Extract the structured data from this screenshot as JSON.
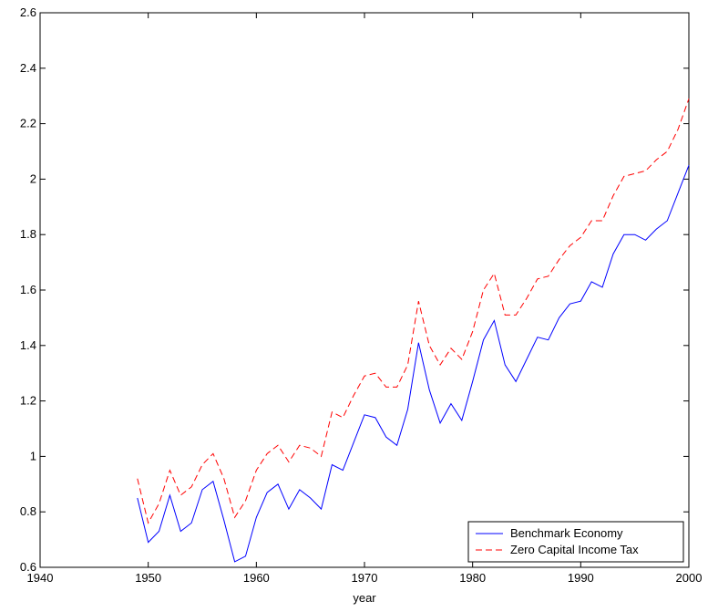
{
  "chart_data": {
    "type": "line",
    "title": "",
    "xlabel": "year",
    "ylabel": "",
    "xlim": [
      1940,
      2000
    ],
    "ylim": [
      0.6,
      2.6
    ],
    "xticks": [
      1940,
      1950,
      1960,
      1970,
      1980,
      1990,
      2000
    ],
    "yticks": [
      0.6,
      0.8,
      1,
      1.2,
      1.4,
      1.6,
      1.8,
      2,
      2.2,
      2.4,
      2.6
    ],
    "xtick_labels": [
      "1940",
      "1950",
      "1960",
      "1970",
      "1980",
      "1990",
      "2000"
    ],
    "ytick_labels": [
      "0.6",
      "0.8",
      "1",
      "1.2",
      "1.4",
      "1.6",
      "1.8",
      "2",
      "2.2",
      "2.4",
      "2.6"
    ],
    "grid": false,
    "legend_position": "bottom-right",
    "x": [
      1949,
      1950,
      1951,
      1952,
      1953,
      1954,
      1955,
      1956,
      1957,
      1958,
      1959,
      1960,
      1961,
      1962,
      1963,
      1964,
      1965,
      1966,
      1967,
      1968,
      1969,
      1970,
      1971,
      1972,
      1973,
      1974,
      1975,
      1976,
      1977,
      1978,
      1979,
      1980,
      1981,
      1982,
      1983,
      1984,
      1985,
      1986,
      1987,
      1988,
      1989,
      1990,
      1991,
      1992,
      1993,
      1994,
      1995,
      1996,
      1997,
      1998,
      1999,
      2000
    ],
    "series": [
      {
        "name": "Benchmark Economy",
        "color": "#0000ff",
        "style": "solid",
        "values": [
          0.85,
          0.69,
          0.73,
          0.86,
          0.73,
          0.76,
          0.88,
          0.91,
          0.77,
          0.62,
          0.64,
          0.78,
          0.87,
          0.9,
          0.81,
          0.88,
          0.85,
          0.81,
          0.97,
          0.95,
          1.05,
          1.15,
          1.14,
          1.07,
          1.04,
          1.17,
          1.41,
          1.24,
          1.12,
          1.19,
          1.13,
          1.27,
          1.42,
          1.49,
          1.33,
          1.27,
          1.35,
          1.43,
          1.42,
          1.5,
          1.55,
          1.56,
          1.63,
          1.61,
          1.73,
          1.8,
          1.8,
          1.78,
          1.82,
          1.85,
          1.95,
          2.05
        ]
      },
      {
        "name": "Zero Capital Income Tax",
        "color": "#ff0000",
        "style": "dashed",
        "values": [
          0.92,
          0.76,
          0.83,
          0.95,
          0.86,
          0.89,
          0.97,
          1.01,
          0.92,
          0.78,
          0.84,
          0.95,
          1.01,
          1.04,
          0.98,
          1.04,
          1.03,
          1.0,
          1.16,
          1.14,
          1.22,
          1.29,
          1.3,
          1.25,
          1.25,
          1.33,
          1.56,
          1.4,
          1.33,
          1.39,
          1.35,
          1.45,
          1.6,
          1.66,
          1.51,
          1.51,
          1.57,
          1.64,
          1.65,
          1.71,
          1.76,
          1.79,
          1.85,
          1.85,
          1.94,
          2.01,
          2.02,
          2.03,
          2.07,
          2.1,
          2.18,
          2.29
        ]
      }
    ]
  }
}
